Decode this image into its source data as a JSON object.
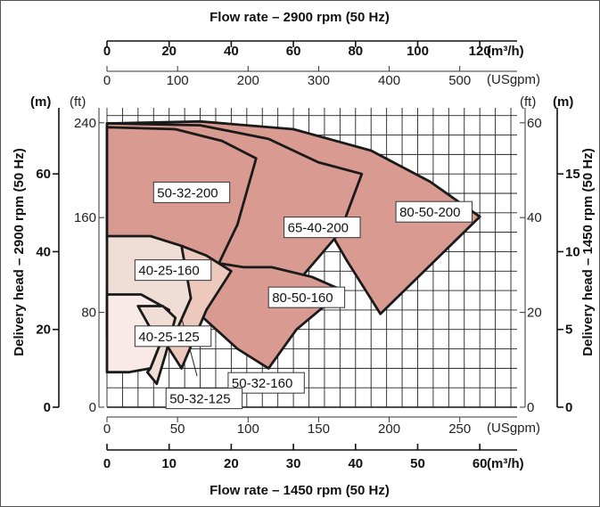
{
  "chart_data": {
    "type": "area",
    "title_top": "Flow rate – 2900 rpm (50 Hz)",
    "title_bottom": "Flow rate – 1450 rpm (50 Hz)",
    "ylabel_left": "Delivery head – 2900 rpm (50 Hz)",
    "ylabel_right": "Delivery head – 1450 rpm (50 Hz)",
    "axes": {
      "top_m3h": {
        "unit": "(m³/h)",
        "ticks": [
          0,
          20,
          40,
          60,
          80,
          100,
          120
        ]
      },
      "top_usgpm": {
        "unit": "(USgpm)",
        "ticks": [
          0,
          100,
          200,
          300,
          400,
          500
        ]
      },
      "bottom_usgpm": {
        "unit": "(USgpm)",
        "ticks": [
          0,
          50,
          100,
          150,
          200,
          250
        ]
      },
      "bottom_m3h": {
        "unit": "(m³/h)",
        "ticks": [
          0,
          10,
          20,
          30,
          40,
          50,
          60
        ]
      },
      "left_m": {
        "unit": "(m)",
        "ticks": [
          0,
          20,
          40,
          60
        ]
      },
      "left_ft": {
        "unit": "(ft)",
        "ticks": [
          0,
          80,
          160,
          240
        ]
      },
      "right_ft": {
        "unit": "(ft)",
        "ticks": [
          0,
          20,
          40,
          60
        ]
      },
      "right_m": {
        "unit": "(m)",
        "ticks": [
          0,
          5,
          10,
          15
        ]
      }
    },
    "xlim_m3h_2900": [
      0,
      132
    ],
    "ylim_m_2900": [
      0,
      77
    ],
    "grid": true,
    "series": [
      {
        "name": "80-50-200",
        "color": "#d99b91",
        "label_at": [
          93,
          49
        ],
        "outline": [
          [
            0,
            73
          ],
          [
            30,
            73.5
          ],
          [
            60,
            71.5
          ],
          [
            85,
            66
          ],
          [
            104,
            58
          ],
          [
            120,
            49
          ],
          [
            88,
            24
          ],
          [
            77,
            38
          ],
          [
            61,
            60
          ],
          [
            40,
            70
          ],
          [
            20,
            72.5
          ],
          [
            0,
            73
          ]
        ]
      },
      {
        "name": "65-40-200",
        "color": "#d99b91",
        "label_at": [
          57,
          45
        ],
        "outline": [
          [
            0,
            73
          ],
          [
            30,
            72.5
          ],
          [
            52,
            69
          ],
          [
            68,
            63
          ],
          [
            82,
            60
          ],
          [
            75,
            45
          ],
          [
            60,
            31
          ],
          [
            45,
            24
          ],
          [
            31,
            32
          ],
          [
            14,
            40
          ],
          [
            0,
            43
          ]
        ]
      },
      {
        "name": "50-32-200",
        "color": "#d99b91",
        "label_at": [
          15,
          54
        ],
        "outline": [
          [
            0,
            72
          ],
          [
            22,
            71.5
          ],
          [
            37,
            68.5
          ],
          [
            48,
            64
          ],
          [
            42,
            47
          ],
          [
            36,
            37
          ],
          [
            33,
            37
          ],
          [
            17,
            40
          ],
          [
            0,
            43
          ]
        ]
      },
      {
        "name": "80-50-160",
        "color": "#d99b91",
        "label_at": [
          52,
          27
        ],
        "outline": [
          [
            53,
            36
          ],
          [
            66,
            33.5
          ],
          [
            76,
            30
          ],
          [
            61,
            20
          ],
          [
            52,
            10
          ],
          [
            42,
            15
          ],
          [
            31,
            23
          ],
          [
            36,
            37
          ],
          [
            44,
            36
          ]
        ]
      },
      {
        "name": "40-25-160",
        "color": "#f0ddd6",
        "label_at": [
          9,
          34
        ],
        "outline": [
          [
            0,
            44
          ],
          [
            14,
            44
          ],
          [
            24,
            41.5
          ],
          [
            32,
            37
          ],
          [
            27,
            28
          ],
          [
            22,
            19
          ],
          [
            15,
            18
          ],
          [
            0,
            18
          ]
        ]
      },
      {
        "name": "50-32-160",
        "color": "#edc8bd",
        "label_at": [
          39,
          5
        ],
        "outline": [
          [
            24,
            41.5
          ],
          [
            32,
            39
          ],
          [
            40,
            35
          ],
          [
            32,
            25
          ],
          [
            24,
            10
          ],
          [
            18,
            17.5
          ],
          [
            22,
            19
          ],
          [
            27,
            28
          ]
        ]
      },
      {
        "name": "40-25-125",
        "color": "#f9eae7",
        "label_at": [
          9,
          17
        ],
        "outline": [
          [
            0,
            29
          ],
          [
            11,
            29
          ],
          [
            20,
            25
          ],
          [
            17,
            16
          ],
          [
            14,
            10
          ],
          [
            7,
            9
          ],
          [
            0,
            9
          ]
        ]
      },
      {
        "name": "50-32-125",
        "color": "#f0ddd6",
        "label_at": [
          19,
          1
        ],
        "outline": [
          [
            10,
            26
          ],
          [
            18,
            26
          ],
          [
            22,
            23
          ],
          [
            19,
            14
          ],
          [
            16,
            6
          ],
          [
            13,
            9
          ],
          [
            14,
            10
          ],
          [
            17,
            16
          ]
        ]
      }
    ],
    "annotation_lines": [
      {
        "series": "50-32-160",
        "from": [
          24,
          23
        ],
        "to": [
          29,
          8
        ]
      }
    ]
  }
}
